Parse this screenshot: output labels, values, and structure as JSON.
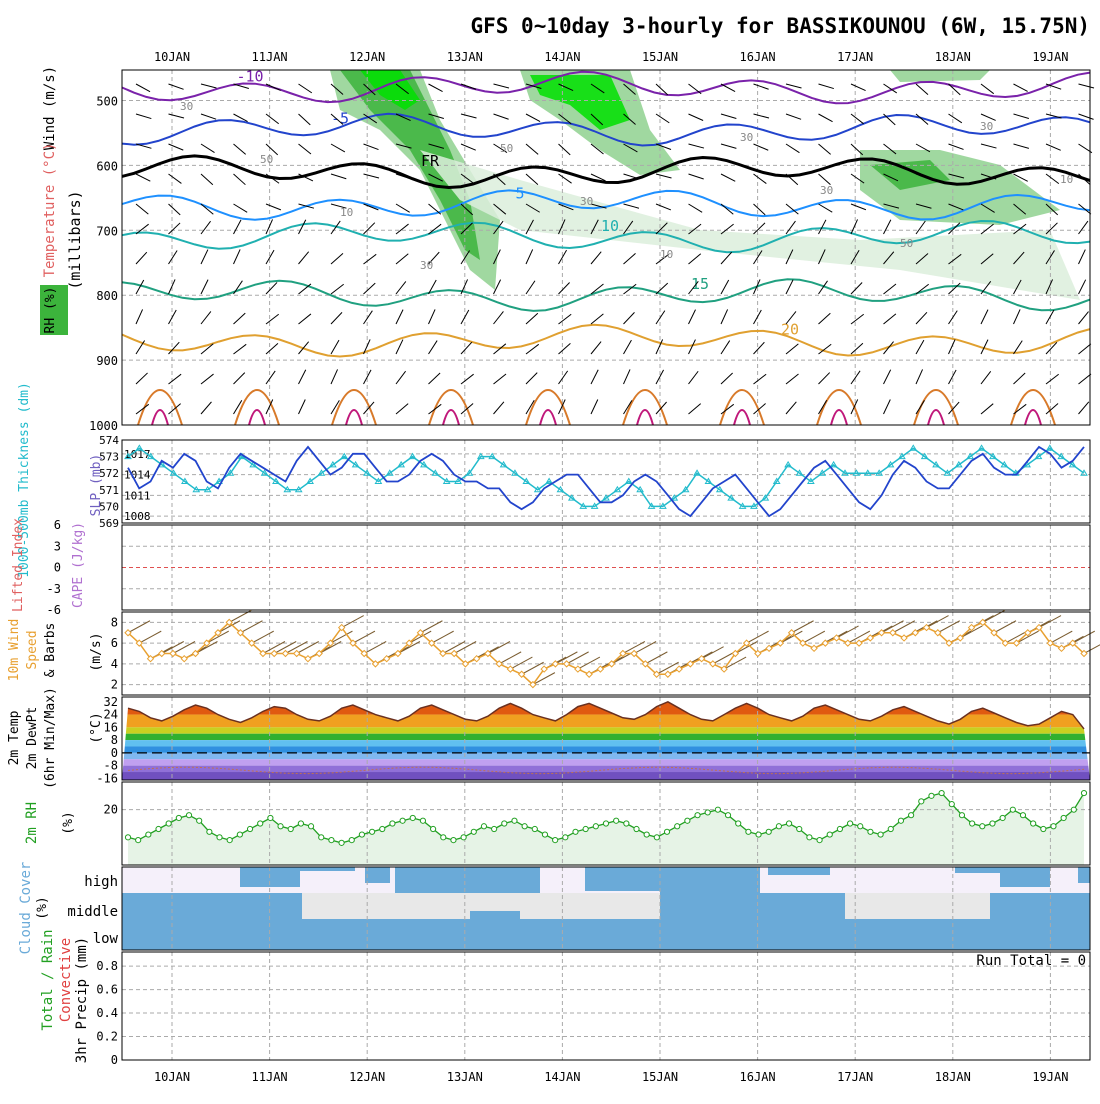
{
  "title": "GFS 0~10day 3-hourly for BASSIKOUNOU (6W, 15.75N)",
  "dates": [
    "10JAN",
    "11JAN",
    "12JAN",
    "13JAN",
    "14JAN",
    "15JAN",
    "16JAN",
    "17JAN",
    "18JAN",
    "19JAN"
  ],
  "colors": {
    "rh_dark": "#3cb43c",
    "rh_mid": "#8fd18f",
    "rh_light": "#dcefdc",
    "rh_bright": "#00e000",
    "slp": "#2244cc",
    "thick": "#22bbcc",
    "wind10m": "#e8a030",
    "rh2m": "#22a022",
    "cloud": "#6aaad8",
    "cloud_lgrey": "#e8e8e8"
  },
  "panels": {
    "upper": {
      "ylabel_parts": [
        {
          "text": "Wind (m/s)",
          "color": "#000000"
        },
        {
          "text": "Temperature (°C)",
          "color": "#e06060"
        },
        {
          "text": "RH (%)",
          "color": "#3cb43c"
        }
      ],
      "millibars": "(millibars)",
      "levels": [
        500,
        600,
        700,
        800,
        900,
        1000
      ],
      "isotherms": [
        {
          "label": "-10",
          "level": 480,
          "color": "#7a22aa"
        },
        {
          "label": "-5",
          "level": 545,
          "color": "#2244cc"
        },
        {
          "label": "FR",
          "level": 610,
          "color": "#000000"
        },
        {
          "label": "5",
          "level": 660,
          "color": "#1e90ff"
        },
        {
          "label": "10",
          "level": 710,
          "color": "#20b0b0"
        },
        {
          "label": "15",
          "level": 800,
          "color": "#20a080"
        },
        {
          "label": "20",
          "level": 870,
          "color": "#e0a030"
        }
      ],
      "rh_labels": [
        "30",
        "50",
        "10",
        "30",
        "50",
        "30",
        "10",
        "30",
        "30",
        "50",
        "30",
        "10"
      ]
    },
    "slp": {
      "left_label": "1000-500mb Thickness (dm)",
      "right_label": "SLP (mb)",
      "thick_ticks": [
        569,
        570,
        571,
        572,
        573,
        574
      ],
      "slp_ticks": [
        1008,
        1011,
        1014,
        1017
      ]
    },
    "cape": {
      "left_label": "Lifted Index",
      "right_label": "CAPE (J/kg)",
      "ticks": [
        -6,
        -3,
        0,
        3,
        6
      ],
      "tick_labels": [
        "6",
        "3",
        "0",
        "-3",
        "-6"
      ]
    },
    "wind10m": {
      "label1": "10m Wind",
      "label2": "Speed",
      "label3": "& Barbs",
      "unit": "(m/s)",
      "ticks": [
        2,
        4,
        6,
        8
      ]
    },
    "temp2m": {
      "label1": "2m Temp",
      "label2": "2m DewPt",
      "label3": "(6hr Min/Max)",
      "unit": "(°C)",
      "ticks": [
        -16,
        -8,
        0,
        8,
        16,
        24,
        32
      ]
    },
    "rh2m": {
      "label": "2m RH",
      "unit": "(%)",
      "ticks": [
        20
      ]
    },
    "cloud": {
      "label": "Cloud Cover",
      "unit": "(%)",
      "layers": [
        "high",
        "middle",
        "low"
      ]
    },
    "precip": {
      "label1": "Total / Rain",
      "label2": "Convective",
      "label3": "3hr Precip (mm)",
      "ticks": [
        0,
        0.2,
        0.4,
        0.6,
        0.8
      ],
      "run_total": "Run Total = 0"
    }
  },
  "chart_data": [
    {
      "type": "line",
      "name": "SLP (mb)",
      "x_unit": "day index (0 = 10JAN 00Z)",
      "values": [
        1015,
        1012,
        1013,
        1016,
        1015,
        1017,
        1016,
        1013,
        1012,
        1015,
        1017,
        1016,
        1015,
        1014,
        1013,
        1016,
        1018,
        1016,
        1014,
        1015,
        1017,
        1017,
        1015,
        1013,
        1013,
        1014,
        1016,
        1017,
        1016,
        1014,
        1013,
        1013,
        1012,
        1012,
        1010,
        1009,
        1010,
        1012,
        1013,
        1014,
        1014,
        1012,
        1010,
        1010,
        1011,
        1013,
        1014,
        1013,
        1011,
        1009,
        1008,
        1010,
        1012,
        1013,
        1014,
        1012,
        1010,
        1008,
        1009,
        1011,
        1013,
        1015,
        1016,
        1014,
        1012,
        1010,
        1009,
        1011,
        1014,
        1016,
        1015,
        1013,
        1012,
        1012,
        1014,
        1016,
        1017,
        1015,
        1014,
        1014,
        1016,
        1018,
        1017,
        1015,
        1016,
        1018
      ]
    },
    {
      "type": "line",
      "name": "1000-500mb Thickness (dm)",
      "values": [
        573,
        573.5,
        573,
        572.5,
        572,
        571.5,
        571,
        571,
        571.5,
        572,
        573,
        572.5,
        572,
        571.5,
        571,
        571,
        571.5,
        572,
        572.5,
        573,
        572.5,
        572,
        571.5,
        572,
        572.5,
        573,
        572.5,
        572,
        571.5,
        571.5,
        572,
        573,
        573,
        572.5,
        572,
        571.5,
        571,
        571.5,
        571,
        570.5,
        570,
        570,
        570.5,
        571,
        571.5,
        571,
        570,
        570,
        570.5,
        571,
        572,
        571.5,
        571,
        570.5,
        570,
        570,
        570.5,
        571.5,
        572.5,
        572,
        571.5,
        572,
        572.5,
        572,
        572,
        572,
        572,
        572.5,
        573,
        573.5,
        573,
        572.5,
        572,
        572.5,
        573,
        573.5,
        573,
        572.5,
        572,
        572.5,
        573,
        573.5,
        573,
        572.5,
        572
      ]
    },
    {
      "type": "line",
      "name": "10m Wind Speed (m/s)",
      "values": [
        7,
        6,
        4.5,
        5,
        5,
        4.5,
        5,
        6,
        7,
        8,
        7,
        6,
        5,
        5,
        5,
        5,
        4.5,
        5,
        6,
        7.5,
        6,
        5,
        4,
        4.5,
        5,
        6,
        7,
        6,
        5,
        5,
        4,
        4.5,
        5,
        4,
        3.5,
        3,
        2,
        3.5,
        4,
        4,
        3.5,
        3,
        3.5,
        4,
        5,
        5,
        4,
        3,
        3,
        3.5,
        4,
        4.5,
        4,
        3.5,
        5,
        6,
        5,
        5.5,
        6,
        7,
        6,
        5.5,
        6,
        6.5,
        6,
        6,
        6.5,
        7,
        7,
        6.5,
        7,
        7.5,
        7,
        6,
        6.5,
        7.5,
        8,
        7,
        6,
        6,
        7,
        7.5,
        6,
        5.5,
        6,
        5
      ]
    },
    {
      "type": "area",
      "name": "2m Temp (°C)",
      "values": [
        28,
        26,
        22,
        20,
        23,
        27,
        30,
        28,
        24,
        21,
        19,
        22,
        26,
        29,
        28,
        24,
        21,
        20,
        23,
        28,
        30,
        27,
        24,
        22,
        20,
        23,
        28,
        30,
        27,
        24,
        21,
        20,
        23,
        28,
        31,
        28,
        24,
        22,
        20,
        24,
        29,
        31,
        28,
        25,
        22,
        21,
        24,
        29,
        32,
        28,
        24,
        21,
        20,
        24,
        28,
        31,
        28,
        24,
        22,
        20,
        23,
        28,
        30,
        27,
        24,
        21,
        20,
        23,
        27,
        29,
        26,
        23,
        20,
        18,
        21,
        26,
        28,
        25,
        22,
        19,
        17,
        18,
        22,
        26,
        24,
        15
      ]
    },
    {
      "type": "line",
      "name": "2m RH (%)",
      "values": [
        10,
        9,
        11,
        13,
        15,
        17,
        18,
        16,
        12,
        10,
        9,
        11,
        13,
        15,
        17,
        14,
        13,
        15,
        14,
        10,
        9,
        8,
        9,
        11,
        12,
        13,
        15,
        16,
        17,
        16,
        13,
        10,
        9,
        10,
        12,
        14,
        13,
        15,
        16,
        14,
        13,
        11,
        9,
        10,
        12,
        13,
        14,
        15,
        16,
        15,
        13,
        11,
        10,
        12,
        14,
        16,
        18,
        19,
        20,
        18,
        15,
        12,
        11,
        12,
        14,
        15,
        13,
        10,
        9,
        11,
        13,
        15,
        14,
        12,
        11,
        13,
        16,
        18,
        23,
        25,
        26,
        22,
        18,
        15,
        14,
        15,
        17,
        20,
        18,
        15,
        13,
        14,
        17,
        20,
        26
      ]
    },
    {
      "type": "bar",
      "name": "3hr Precip (mm)",
      "ylim": [
        0,
        0.9
      ],
      "values": []
    }
  ]
}
